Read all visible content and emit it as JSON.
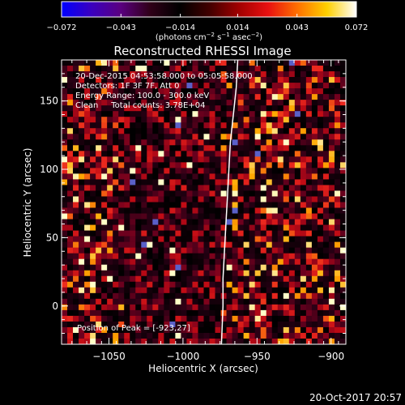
{
  "chart_data": {
    "type": "heatmap",
    "title": "Reconstructed RHESSI Image",
    "xlabel": "Heliocentric X (arcsec)",
    "ylabel": "Heliocentric Y (arcsec)",
    "xlim": [
      -1082,
      -890
    ],
    "ylim": [
      -28,
      180
    ],
    "x_ticks": [
      -1050,
      -1000,
      -950,
      -900
    ],
    "x_tick_labels": [
      "−1050",
      "−1000",
      "−950",
      "−900"
    ],
    "y_ticks": [
      0,
      50,
      100,
      150
    ],
    "y_tick_labels": [
      "0",
      "50",
      "100",
      "150"
    ],
    "colorbar": {
      "min": -0.072,
      "max": 0.072,
      "ticks": [
        -0.072,
        -0.043,
        -0.014,
        0.014,
        0.043,
        0.072
      ],
      "tick_labels": [
        "−0.072",
        "−0.043",
        "−0.014",
        "0.014",
        "0.043",
        "0.072"
      ],
      "units_prefix": "(photons cm",
      "units_exp1": "−2",
      "units_mid": " s",
      "units_exp2": "−1",
      "units_mid2": " asec",
      "units_exp3": "−2",
      "units_suffix": ")",
      "colors": [
        "#0000ff",
        "#3a00c0",
        "#5a0080",
        "#300018",
        "#000000",
        "#400000",
        "#a00000",
        "#e81010",
        "#ff7000",
        "#ffd000",
        "#ffffff"
      ]
    },
    "limb_curve": [
      [
        -963,
        180
      ],
      [
        -964,
        160
      ],
      [
        -966,
        140
      ],
      [
        -968,
        120
      ],
      [
        -969,
        100
      ],
      [
        -970,
        80
      ],
      [
        -971,
        60
      ],
      [
        -972,
        40
      ],
      [
        -973,
        20
      ],
      [
        -973,
        0
      ],
      [
        -974,
        -28
      ]
    ],
    "limb_color": "#ffffff"
  },
  "info_lines": [
    "20-Dec-2015 04:53:58.000 to 05:05:58.000",
    "Detectors: 1F 3F 7F, Att 0",
    "Energy Range: 100.0 - 300.0 keV",
    "Clean     Total counts: 3.78E+04"
  ],
  "peak_label": "Position of Peak = [-923,27]",
  "footer_date": "20-Oct-2017 20:57"
}
